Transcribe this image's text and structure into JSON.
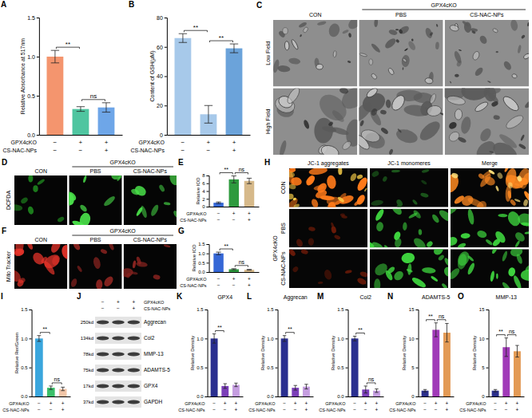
{
  "chart_data": [
    {
      "panel": "A",
      "type": "bar",
      "y_label": "Relative Absorbance at 517nm",
      "categories": [
        null,
        null,
        null
      ],
      "values": [
        1.0,
        0.33,
        0.35
      ],
      "errors": [
        0.08,
        0.03,
        0.06
      ],
      "colors": [
        "#f4956e",
        "#4fc5a0",
        "#6ea6e8"
      ],
      "ylim": [
        0,
        1.5
      ],
      "yticks": [
        {
          "value": 0,
          "label": "0.0"
        },
        {
          "value": 0.5,
          "label": "0.5"
        },
        {
          "value": 1,
          "label": "1.0"
        },
        {
          "value": 1.5,
          "label": "1.5"
        }
      ],
      "conditions": [
        {
          "label": "GPX4cKO",
          "signs": [
            "−",
            "+",
            "+"
          ]
        },
        {
          "label": "CS-NAC-NPs",
          "signs": [
            "−",
            "−",
            "+"
          ]
        }
      ],
      "annotations": [
        {
          "text": "**",
          "between": [
            0,
            1
          ]
        },
        {
          "text": "ns",
          "between": [
            1,
            2
          ]
        }
      ]
    },
    {
      "panel": "B",
      "type": "bar",
      "y_label": "Content of GSH(μM)",
      "categories": [
        null,
        null,
        null
      ],
      "values": [
        66,
        14,
        59
      ],
      "errors": [
        3,
        6,
        3
      ],
      "colors": [
        "#a7c9ea",
        "#a7c9ea",
        "#6ba3da"
      ],
      "ylim": [
        0,
        80
      ],
      "yticks": [
        0,
        20,
        40,
        60,
        80
      ],
      "conditions": [
        {
          "label": "GPX4cKO",
          "signs": [
            "−",
            "+",
            "+"
          ]
        },
        {
          "label": "CS-NAC-NPs",
          "signs": [
            "−",
            "−",
            "+"
          ]
        }
      ],
      "annotations": [
        {
          "text": "**",
          "between": [
            0,
            1
          ]
        },
        {
          "text": "**",
          "between": [
            1,
            2
          ]
        }
      ]
    },
    {
      "panel": "E",
      "type": "bar",
      "y_label": "Relative IOD",
      "categories": [
        null,
        null,
        null
      ],
      "values": [
        1.0,
        7.0,
        6.6
      ],
      "errors": [
        0.2,
        0.9,
        0.7
      ],
      "colors": [
        "#3567d6",
        "#2e9a3e",
        "#d6b98a"
      ],
      "ylim": [
        0,
        8
      ],
      "yticks": [
        0,
        2,
        4,
        6,
        8
      ],
      "conditions": [
        {
          "label": "GPX4cKO",
          "signs": [
            "−",
            "+",
            "+"
          ]
        },
        {
          "label": "CS-NAC-NPs",
          "signs": [
            "−",
            "−",
            "+"
          ]
        }
      ],
      "annotations": [
        {
          "text": "**",
          "between": [
            0,
            1
          ]
        },
        {
          "text": "ns",
          "between": [
            1,
            2
          ]
        }
      ]
    },
    {
      "panel": "G",
      "type": "bar",
      "y_label": "Relative IOD",
      "categories": [
        null,
        null,
        null
      ],
      "values": [
        1.0,
        0.15,
        0.12
      ],
      "errors": [
        0.07,
        0.03,
        0.02
      ],
      "colors": [
        "#3567d6",
        "#2e9a3e",
        "#d6b98a"
      ],
      "ylim": [
        0,
        1.5
      ],
      "yticks": [
        {
          "value": 0,
          "label": "0.0"
        },
        {
          "value": 0.5,
          "label": "0.5"
        },
        {
          "value": 1,
          "label": "1.0"
        },
        {
          "value": 1.5,
          "label": "1.5"
        }
      ],
      "conditions": [
        {
          "label": "GPX4cKO",
          "signs": [
            "−",
            "+",
            "+"
          ]
        },
        {
          "label": "CS-NAC-NPs",
          "signs": [
            "−",
            "−",
            "+"
          ]
        }
      ],
      "annotations": [
        {
          "text": "**",
          "between": [
            0,
            1
          ]
        },
        {
          "text": "ns",
          "between": [
            1,
            2
          ]
        }
      ]
    },
    {
      "panel": "I",
      "type": "bar",
      "y_label": "Relative Rer/Green",
      "categories": [
        null,
        null,
        null
      ],
      "values": [
        1.0,
        0.15,
        0.13
      ],
      "errors": [
        0.05,
        0.03,
        0.03
      ],
      "colors": [
        "#3aa6dd",
        "#3bbf6a",
        "#f2c6a8"
      ],
      "ylim": [
        0,
        1.5
      ],
      "yticks": [
        {
          "value": 0,
          "label": "0.0"
        },
        {
          "value": 0.5,
          "label": "0.5"
        },
        {
          "value": 1,
          "label": "1.0"
        },
        {
          "value": 1.5,
          "label": "1.5"
        }
      ],
      "conditions": [
        {
          "label": "GPX4cKO",
          "signs": [
            "−",
            "+",
            "+"
          ]
        },
        {
          "label": "CS-NAC-NPs",
          "signs": [
            "−",
            "−",
            "+"
          ]
        }
      ],
      "annotations": [
        {
          "text": "**",
          "between": [
            0,
            1
          ]
        },
        {
          "text": "ns",
          "between": [
            1,
            2
          ]
        }
      ]
    },
    {
      "panel": "K",
      "type": "bar",
      "title": "GPX4",
      "y_label": "Relative Density",
      "categories": [
        null,
        null,
        null
      ],
      "values": [
        1.0,
        0.18,
        0.2
      ],
      "errors": [
        0.08,
        0.04,
        0.03
      ],
      "colors": [
        "#2a2f8f",
        "#7b3fb8",
        "#c59ee0"
      ],
      "ylim": [
        0,
        1.5
      ],
      "yticks": [
        {
          "value": 0,
          "label": "0.0"
        },
        {
          "value": 0.5,
          "label": "0.5"
        },
        {
          "value": 1,
          "label": "1.0"
        },
        {
          "value": 1.5,
          "label": "1.5"
        }
      ],
      "conditions": [
        {
          "label": "GPX4cKO",
          "signs": [
            "−",
            "+",
            "+"
          ]
        },
        {
          "label": "CS-NAC-NPs",
          "signs": [
            "−",
            "−",
            "+"
          ]
        }
      ],
      "annotations": [
        {
          "text": "**",
          "between": [
            0,
            1
          ]
        }
      ]
    },
    {
      "panel": "L",
      "type": "bar",
      "title": "Aggrecan",
      "y_label": "Relative Density",
      "categories": [
        null,
        null,
        null
      ],
      "values": [
        1.0,
        0.15,
        0.17
      ],
      "errors": [
        0.05,
        0.04,
        0.04
      ],
      "colors": [
        "#2a2f8f",
        "#7b3fb8",
        "#c59ee0"
      ],
      "ylim": [
        0,
        1.5
      ],
      "yticks": [
        {
          "value": 0,
          "label": "0.0"
        },
        {
          "value": 0.5,
          "label": "0.5"
        },
        {
          "value": 1,
          "label": "1.0"
        },
        {
          "value": 1.5,
          "label": "1.5"
        }
      ],
      "conditions": [
        {
          "label": "GPX4cKO",
          "signs": [
            "−",
            "+",
            "+"
          ]
        },
        {
          "label": "CS-NAC-NPs",
          "signs": [
            "−",
            "−",
            "+"
          ]
        }
      ],
      "annotations": [
        {
          "text": "**",
          "between": [
            0,
            1
          ]
        }
      ]
    },
    {
      "panel": "M",
      "type": "bar",
      "title": "Col2",
      "y_label": "Relative Density",
      "categories": [
        null,
        null,
        null
      ],
      "values": [
        1.0,
        0.12,
        0.1
      ],
      "errors": [
        0.04,
        0.06,
        0.03
      ],
      "colors": [
        "#2a2f8f",
        "#7b3fb8",
        "#c59ee0"
      ],
      "ylim": [
        0,
        1.5
      ],
      "yticks": [
        {
          "value": 0,
          "label": "0.0"
        },
        {
          "value": 0.5,
          "label": "0.5"
        },
        {
          "value": 1,
          "label": "1.0"
        },
        {
          "value": 1.5,
          "label": "1.5"
        }
      ],
      "conditions": [
        {
          "label": "GPX4cKO",
          "signs": [
            "−",
            "+",
            "+"
          ]
        },
        {
          "label": "CS-NAC-NPs",
          "signs": [
            "−",
            "−",
            "+"
          ]
        }
      ],
      "annotations": [
        {
          "text": "**",
          "between": [
            0,
            1
          ]
        },
        {
          "text": "ns",
          "between": [
            1,
            2
          ]
        }
      ]
    },
    {
      "panel": "N",
      "type": "bar",
      "title": "ADAMTS-5",
      "y_label": "Relative Density",
      "categories": [
        null,
        null,
        null
      ],
      "values": [
        1.0,
        11.5,
        11.0
      ],
      "errors": [
        0.2,
        1.2,
        1.6
      ],
      "colors": [
        "#2b2f8c",
        "#a03ab8",
        "#e39a55"
      ],
      "ylim": [
        0,
        15
      ],
      "yticks": [
        0,
        5,
        10,
        15
      ],
      "conditions": [
        {
          "label": "GPX4cKO",
          "signs": [
            "−",
            "+",
            "+"
          ]
        },
        {
          "label": "CS-NAC-NPs",
          "signs": [
            "−",
            "−",
            "+"
          ]
        }
      ],
      "annotations": [
        {
          "text": "**",
          "between": [
            0,
            1
          ]
        },
        {
          "text": "ns",
          "between": [
            1,
            2
          ]
        }
      ]
    },
    {
      "panel": "O",
      "type": "bar",
      "title": "MMP-13",
      "y_label": "Relative Density",
      "categories": [
        null,
        null,
        null
      ],
      "values": [
        1.0,
        8.5,
        7.8
      ],
      "errors": [
        0.2,
        1.6,
        1.0
      ],
      "colors": [
        "#2b2f8c",
        "#a03ab8",
        "#e39a55"
      ],
      "ylim": [
        0,
        15
      ],
      "yticks": [
        0,
        5,
        10,
        15
      ],
      "conditions": [
        {
          "label": "GPX4cKO",
          "signs": [
            "−",
            "+",
            "+"
          ]
        },
        {
          "label": "CS-NAC-NPs",
          "signs": [
            "−",
            "−",
            "+"
          ]
        }
      ],
      "annotations": [
        {
          "text": "**",
          "between": [
            0,
            1
          ]
        },
        {
          "text": "ns",
          "between": [
            1,
            2
          ]
        }
      ]
    }
  ],
  "image_panels": [
    {
      "panel": "C",
      "group": "GPX4cKO",
      "columns": [
        "CON",
        "PBS",
        "CS-NAC-NPs"
      ],
      "rows": [
        "Low Field",
        "High Field"
      ]
    },
    {
      "panel": "D",
      "stain": "DCFDA",
      "group": "GPX4cKO",
      "columns": [
        "CON",
        "PBS",
        "CS-NAC-NPs"
      ]
    },
    {
      "panel": "F",
      "stain": "Mito Tracker",
      "group": "GPX4cKO",
      "columns": [
        "CON",
        "PBS",
        "CS-NAC-NPs"
      ]
    },
    {
      "panel": "H",
      "group": "GPX4cKO",
      "columns": [
        "JC-1 aggregates",
        "JC-1 monomeres",
        "Merge"
      ],
      "rows": [
        "CON",
        "PBS",
        "CS-NAC-NPs"
      ]
    },
    {
      "panel": "J",
      "conditions": [
        {
          "label": "GPX4cKO",
          "signs": [
            "−",
            "+",
            "+"
          ]
        },
        {
          "label": "CS-NAC-NPs",
          "signs": [
            "−",
            "−",
            "+"
          ]
        }
      ],
      "bands": [
        {
          "size": "250kd",
          "protein": "Aggrecan"
        },
        {
          "size": "134kd",
          "protein": "Col2"
        },
        {
          "size": "78kd",
          "protein": "MMP-13"
        },
        {
          "size": "75kd",
          "protein": "ADAMTS-5"
        },
        {
          "size": "17kd",
          "protein": "GPX4"
        },
        {
          "size": "37kd",
          "protein": "GAPDH"
        }
      ]
    }
  ]
}
